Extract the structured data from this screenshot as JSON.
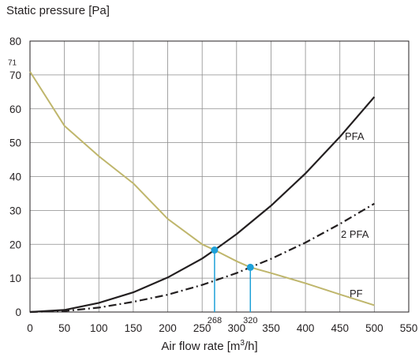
{
  "chart_data": {
    "type": "line",
    "ylabel": "Static pressure [Pa]",
    "xlabel_prefix": "Air flow rate [m",
    "xlabel_sup": "3",
    "xlabel_suffix": "/h]",
    "xlim": [
      0,
      550
    ],
    "ylim": [
      0,
      80
    ],
    "xticks": [
      0,
      50,
      100,
      150,
      200,
      250,
      300,
      350,
      400,
      450,
      500,
      550
    ],
    "yticks": [
      0,
      10,
      20,
      30,
      40,
      50,
      60,
      70,
      80
    ],
    "grid": true,
    "series": [
      {
        "name": "PFA",
        "color": "#231f20",
        "dash": "solid",
        "x": [
          0,
          50,
          100,
          150,
          200,
          250,
          268,
          300,
          350,
          400,
          450,
          500
        ],
        "y": [
          0,
          0.6,
          2.7,
          5.8,
          10.2,
          15.8,
          18.3,
          23.0,
          31.4,
          40.9,
          51.7,
          63.5
        ]
      },
      {
        "name": "2 PFA",
        "color": "#231f20",
        "dash": "dashdot",
        "x": [
          0,
          50,
          100,
          150,
          200,
          250,
          300,
          320,
          350,
          400,
          450,
          500
        ],
        "y": [
          0,
          0.3,
          1.3,
          3.0,
          5.1,
          8.0,
          11.5,
          13.2,
          15.7,
          20.5,
          26.0,
          32.0
        ]
      },
      {
        "name": "PF",
        "color": "#bfb66c",
        "dash": "solid",
        "x": [
          0,
          50,
          100,
          150,
          200,
          250,
          268,
          300,
          320,
          350,
          400,
          450,
          500
        ],
        "y": [
          71,
          55,
          46,
          38,
          27.5,
          20,
          18.3,
          15,
          13.2,
          11.5,
          8.5,
          5.2,
          2
        ]
      }
    ],
    "annotations": [
      {
        "label": "71",
        "y": 71
      },
      {
        "label": "268",
        "x": 268,
        "y": 18.3,
        "color": "#1ea0d8"
      },
      {
        "label": "320",
        "x": 320,
        "y": 13.2,
        "color": "#1ea0d8"
      }
    ]
  }
}
